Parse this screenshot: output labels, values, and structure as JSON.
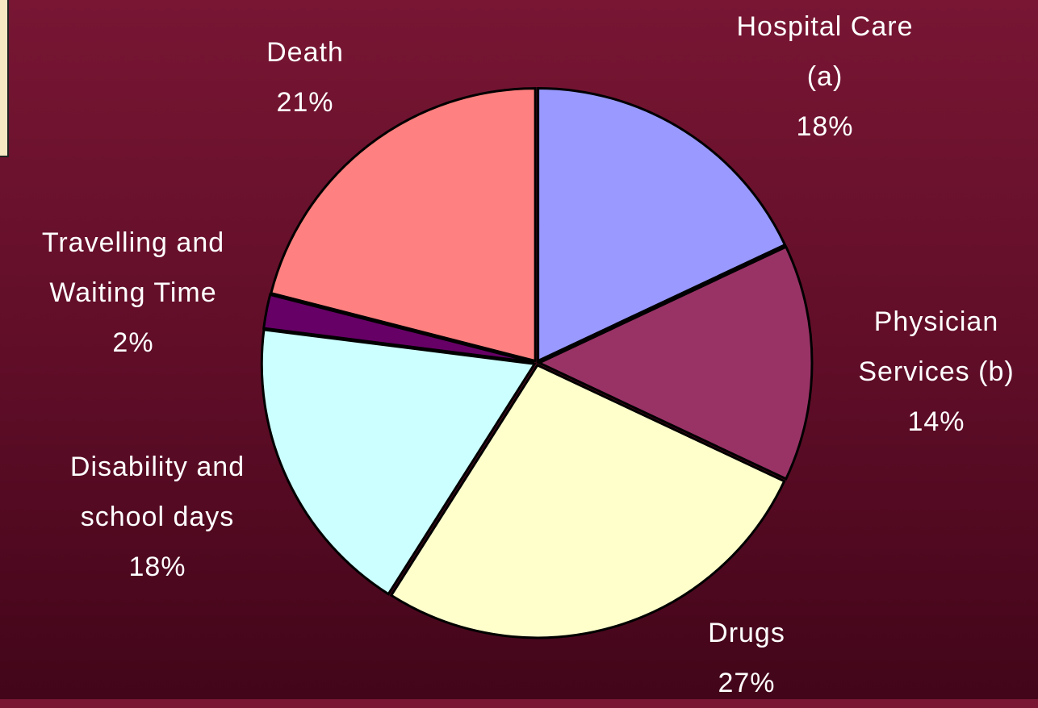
{
  "chart_data": {
    "type": "pie",
    "categories": [
      "Hospital Care (a)",
      "Physician Services (b)",
      "Drugs",
      "Disability and school days",
      "Travelling and Waiting Time",
      "Death"
    ],
    "values": [
      18,
      14,
      27,
      18,
      2,
      21
    ],
    "value_labels": [
      "18%",
      "14%",
      "27%",
      "18%",
      "2%",
      "21%"
    ],
    "colors": [
      "#9999ff",
      "#993366",
      "#ffffcc",
      "#ccffff",
      "#660066",
      "#ff8080"
    ]
  }
}
